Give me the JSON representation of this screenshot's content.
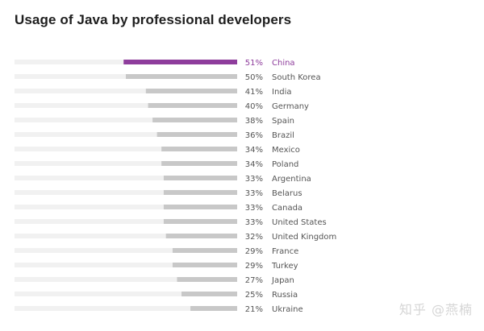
{
  "chart_data": {
    "type": "bar",
    "orientation": "horizontal",
    "title": "Usage of Java by professional developers",
    "categories": [
      "China",
      "South Korea",
      "India",
      "Germany",
      "Spain",
      "Brazil",
      "Mexico",
      "Poland",
      "Argentina",
      "Belarus",
      "Canada",
      "United States",
      "United Kingdom",
      "France",
      "Turkey",
      "Japan",
      "Russia",
      "Ukraine"
    ],
    "values": [
      51,
      50,
      41,
      40,
      38,
      36,
      34,
      34,
      33,
      33,
      33,
      33,
      32,
      29,
      29,
      27,
      25,
      21
    ],
    "value_labels": [
      "51%",
      "50%",
      "41%",
      "40%",
      "38%",
      "36%",
      "34%",
      "34%",
      "33%",
      "33%",
      "33%",
      "33%",
      "32%",
      "29%",
      "29%",
      "27%",
      "25%",
      "21%"
    ],
    "xlim": [
      0,
      100
    ],
    "highlight_category": "China",
    "colors": {
      "highlight": "#8e3d9c",
      "bar": "#c8c8c8",
      "track": "#f1f1f1",
      "label": "#555555",
      "highlight_label": "#8e3d9c"
    }
  },
  "watermark": "知乎 @燕楠"
}
